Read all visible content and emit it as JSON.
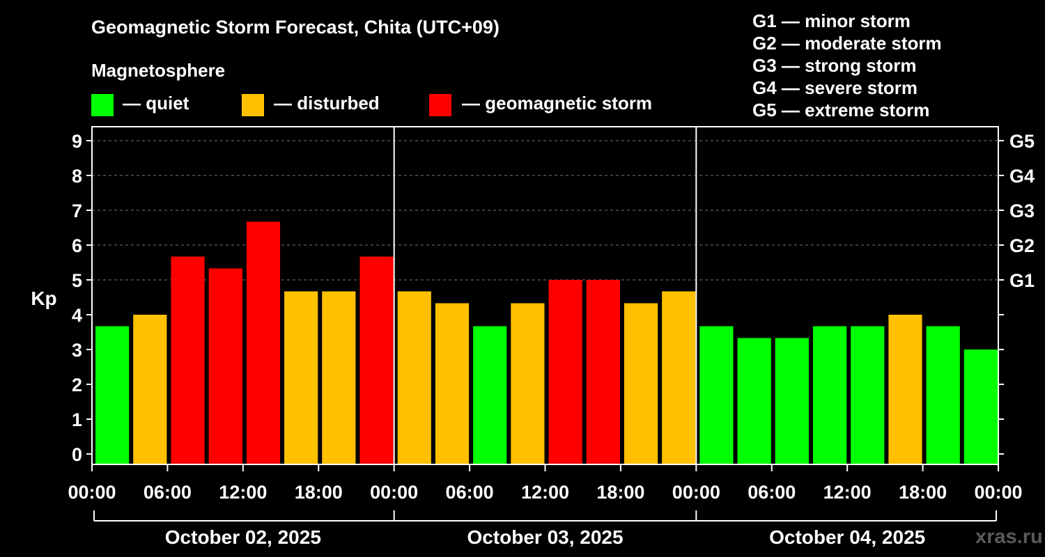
{
  "header": {
    "title": "Geomagnetic Storm Forecast, Chita (UTC+09)",
    "subtitle": "Magnetosphere"
  },
  "legend": [
    {
      "label": "— quiet",
      "color": "#00ff00"
    },
    {
      "label": "— disturbed",
      "color": "#ffc000"
    },
    {
      "label": "— geomagnetic storm",
      "color": "#ff0000"
    }
  ],
  "g_scale": [
    "G1 — minor storm",
    "G2 — moderate storm",
    "G3 — strong storm",
    "G4 — severe storm",
    "G5 — extreme storm"
  ],
  "watermark": "xras.ru",
  "chart_data": {
    "type": "bar",
    "ylabel": "Kp",
    "ylim": [
      0,
      9
    ],
    "yticks": [
      "0",
      "1",
      "2",
      "3",
      "4",
      "5",
      "6",
      "7",
      "8",
      "9"
    ],
    "right_axis": [
      {
        "kp": 5,
        "label": "G1"
      },
      {
        "kp": 6,
        "label": "G2"
      },
      {
        "kp": 7,
        "label": "G3"
      },
      {
        "kp": 8,
        "label": "G4"
      },
      {
        "kp": 9,
        "label": "G5"
      }
    ],
    "xticks": [
      "00:00",
      "06:00",
      "12:00",
      "18:00",
      "00:00",
      "06:00",
      "12:00",
      "18:00",
      "00:00",
      "06:00",
      "12:00",
      "18:00",
      "00:00"
    ],
    "days": [
      "October 02, 2025",
      "October 03, 2025",
      "October 04, 2025"
    ],
    "interval_hours": 3,
    "values": [
      3.67,
      4.0,
      5.67,
      5.33,
      6.67,
      4.67,
      4.67,
      5.67,
      4.67,
      4.33,
      3.67,
      4.33,
      5.0,
      5.0,
      4.33,
      4.67,
      3.67,
      3.33,
      3.33,
      3.67,
      3.67,
      4.0,
      3.67,
      3.0
    ],
    "levels": [
      "quiet",
      "disturbed",
      "storm",
      "storm",
      "storm",
      "disturbed",
      "disturbed",
      "storm",
      "disturbed",
      "disturbed",
      "quiet",
      "disturbed",
      "storm",
      "storm",
      "disturbed",
      "disturbed",
      "quiet",
      "quiet",
      "quiet",
      "quiet",
      "quiet",
      "disturbed",
      "quiet",
      "quiet"
    ],
    "colors": {
      "quiet": "#00ff00",
      "disturbed": "#ffc000",
      "storm": "#ff0000"
    },
    "grid": true
  }
}
